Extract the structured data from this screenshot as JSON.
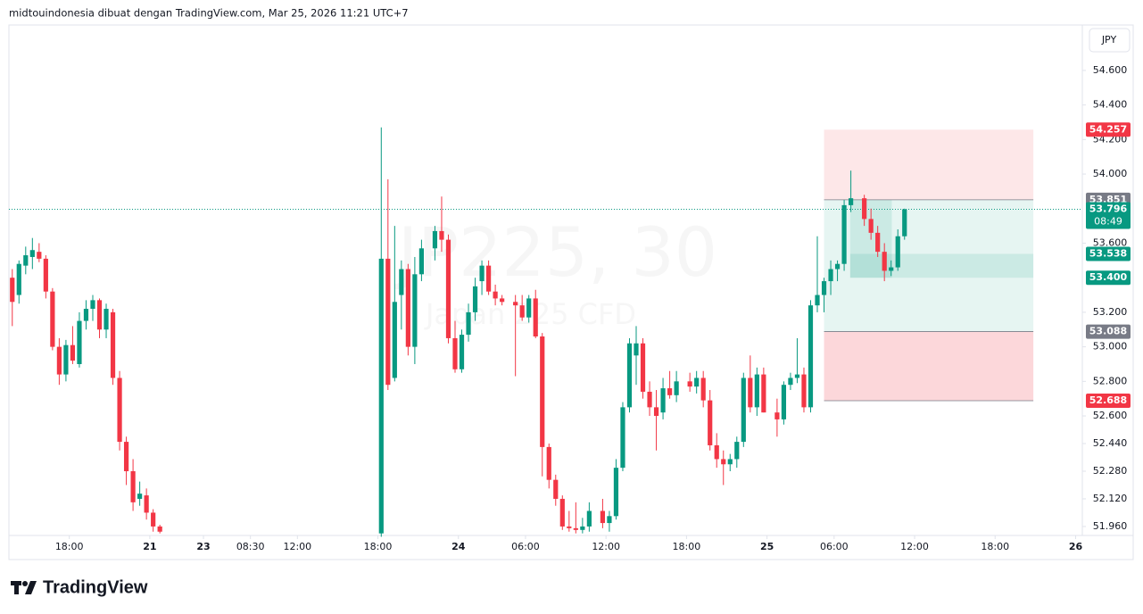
{
  "header": {
    "text": "midtouindonesia dibuat dengan TradingView.com, Mar 25, 2026 11:21 UTC+7",
    "currency": "JPY"
  },
  "watermark": {
    "symbol": "JP225, 30",
    "description": "Japan 225 CFD"
  },
  "logo": "TradingView",
  "chart_data": {
    "type": "candlestick",
    "up_color": "#089981",
    "down_color": "#f23645",
    "x": [
      0,
      1,
      2,
      3,
      4,
      5,
      6,
      7,
      8,
      9,
      10,
      11,
      12,
      13,
      14,
      15,
      16,
      17,
      18,
      19,
      20,
      21,
      22,
      55,
      56,
      57,
      58,
      59,
      60,
      61,
      63,
      64,
      65,
      66,
      67,
      68,
      69,
      70,
      71,
      72,
      73,
      75,
      76,
      77,
      78,
      79,
      80,
      81,
      82,
      83,
      84,
      85,
      86,
      88,
      89,
      90,
      91,
      92,
      93,
      94,
      95,
      96,
      97,
      98,
      99,
      101,
      102,
      103,
      104,
      105,
      106,
      107,
      108,
      109,
      110,
      111,
      112,
      114,
      115,
      116,
      117,
      118,
      119,
      120,
      121,
      122,
      123,
      124,
      125,
      127,
      128,
      129,
      130,
      131,
      132,
      133
    ],
    "open": [
      53.4,
      53.3,
      53.47,
      53.52,
      53.55,
      53.51,
      53.32,
      53.0,
      52.84,
      53.01,
      52.9,
      53.15,
      53.22,
      53.27,
      53.1,
      53.2,
      52.82,
      52.45,
      52.28,
      52.12,
      52.14,
      52.04,
      51.96,
      51.92,
      53.51,
      52.82,
      53.3,
      53.45,
      53.0,
      53.42,
      53.57,
      53.67,
      53.62,
      53.05,
      52.87,
      53.07,
      53.2,
      53.38,
      53.47,
      53.32,
      53.28,
      53.26,
      53.24,
      53.17,
      53.28,
      53.06,
      52.42,
      52.23,
      52.12,
      51.96,
      51.95,
      51.94,
      51.96,
      52.05,
      51.98,
      52.02,
      52.3,
      52.65,
      52.95,
      53.02,
      52.74,
      52.65,
      52.62,
      52.76,
      52.72,
      52.8,
      52.77,
      52.82,
      52.69,
      52.43,
      52.35,
      52.32,
      52.35,
      52.45,
      52.82,
      52.65,
      52.84,
      52.62,
      52.58,
      52.78,
      52.82,
      52.84,
      52.65,
      53.24,
      53.3,
      53.38,
      53.45,
      53.48,
      53.82,
      53.86,
      53.74,
      53.66,
      53.55,
      53.44,
      53.46,
      53.64
    ],
    "high": [
      53.45,
      53.5,
      53.58,
      53.63,
      53.6,
      53.53,
      53.34,
      53.05,
      53.04,
      53.12,
      53.2,
      53.27,
      53.3,
      53.28,
      53.25,
      53.22,
      52.86,
      52.48,
      52.35,
      52.22,
      52.18,
      52.06,
      51.97,
      54.27,
      53.97,
      53.7,
      53.5,
      53.48,
      53.52,
      53.62,
      53.7,
      53.87,
      53.65,
      53.15,
      53.1,
      53.25,
      53.4,
      53.5,
      53.5,
      53.36,
      53.3,
      53.3,
      53.3,
      53.3,
      53.33,
      53.08,
      52.44,
      52.26,
      52.14,
      52.05,
      52.1,
      52.01,
      52.1,
      52.12,
      52.05,
      52.35,
      52.68,
      53.05,
      53.12,
      53.05,
      52.8,
      52.75,
      52.82,
      52.86,
      52.86,
      52.85,
      52.86,
      52.86,
      52.75,
      52.5,
      52.4,
      52.38,
      52.48,
      52.85,
      52.95,
      52.88,
      52.88,
      52.7,
      52.8,
      52.85,
      53.05,
      52.88,
      53.27,
      53.64,
      53.4,
      53.5,
      53.5,
      53.85,
      54.02,
      53.88,
      53.8,
      53.7,
      53.6,
      53.5,
      53.68,
      53.8
    ],
    "low": [
      53.12,
      53.25,
      53.42,
      53.45,
      53.49,
      53.28,
      52.98,
      52.78,
      52.8,
      52.9,
      52.88,
      53.1,
      53.15,
      53.05,
      53.05,
      52.78,
      52.4,
      52.2,
      52.05,
      52.08,
      52.0,
      51.93,
      51.92,
      51.9,
      52.75,
      52.8,
      53.1,
      52.95,
      52.9,
      53.38,
      53.5,
      53.55,
      53.02,
      52.85,
      52.85,
      53.03,
      53.15,
      53.3,
      53.3,
      53.24,
      53.24,
      52.83,
      53.15,
      53.14,
      53.05,
      52.25,
      52.18,
      52.08,
      51.94,
      51.93,
      51.92,
      51.92,
      51.93,
      51.95,
      51.93,
      52.0,
      52.28,
      52.62,
      52.78,
      52.7,
      52.6,
      52.4,
      52.58,
      52.7,
      52.68,
      52.74,
      52.73,
      52.65,
      52.4,
      52.3,
      52.2,
      52.28,
      52.3,
      52.42,
      52.62,
      52.6,
      52.62,
      52.48,
      52.55,
      52.75,
      52.79,
      52.62,
      52.62,
      53.2,
      53.2,
      53.3,
      53.38,
      53.44,
      53.78,
      53.7,
      53.62,
      53.52,
      53.38,
      53.41,
      53.44,
      53.62
    ],
    "close": [
      53.26,
      53.48,
      53.53,
      53.56,
      53.51,
      53.32,
      53.0,
      52.84,
      53.01,
      52.92,
      53.15,
      53.22,
      53.27,
      53.1,
      53.22,
      52.82,
      52.45,
      52.28,
      52.1,
      52.15,
      52.04,
      51.96,
      51.93,
      53.51,
      52.78,
      53.26,
      53.45,
      53.0,
      53.42,
      53.57,
      53.67,
      53.62,
      53.05,
      52.87,
      53.07,
      53.2,
      53.35,
      53.47,
      53.32,
      53.28,
      53.26,
      53.24,
      53.17,
      53.28,
      53.06,
      52.42,
      52.23,
      52.12,
      51.96,
      51.95,
      51.94,
      51.96,
      52.05,
      51.98,
      52.02,
      52.3,
      52.65,
      53.02,
      53.02,
      52.74,
      52.65,
      52.6,
      52.76,
      52.72,
      52.8,
      52.77,
      52.82,
      52.69,
      52.43,
      52.35,
      52.32,
      52.35,
      52.45,
      52.82,
      52.65,
      52.84,
      52.62,
      52.58,
      52.78,
      52.82,
      52.84,
      52.65,
      53.24,
      53.3,
      53.38,
      53.45,
      53.48,
      53.82,
      53.86,
      53.74,
      53.66,
      53.55,
      53.44,
      53.46,
      53.64,
      53.796
    ],
    "xlim": [
      -0.5,
      159.5
    ],
    "ylim": [
      51.908,
      54.863
    ],
    "xticks": [
      {
        "value": 8.5,
        "label": "18:00"
      },
      {
        "value": 20.5,
        "label": "21"
      },
      {
        "value": 28.5,
        "label": "23"
      },
      {
        "value": 35.5,
        "label": "08:30"
      },
      {
        "value": 42.5,
        "label": "12:00"
      },
      {
        "value": 54.5,
        "label": "18:00"
      },
      {
        "value": 66.5,
        "label": "24"
      },
      {
        "value": 76.5,
        "label": "06:00"
      },
      {
        "value": 88.5,
        "label": "12:00"
      },
      {
        "value": 100.5,
        "label": "18:00"
      },
      {
        "value": 112.5,
        "label": "25"
      },
      {
        "value": 122.5,
        "label": "06:00"
      },
      {
        "value": 134.5,
        "label": "12:00"
      },
      {
        "value": 146.5,
        "label": "18:00"
      },
      {
        "value": 158.5,
        "label": "26"
      }
    ],
    "yticks": [
      {
        "value": 54.6,
        "label": "54.600"
      },
      {
        "value": 54.4,
        "label": "54.400"
      },
      {
        "value": 54.2,
        "label": "54.200"
      },
      {
        "value": 54,
        "label": "54.000"
      },
      {
        "value": 53.6,
        "label": "53.600"
      },
      {
        "value": 53.2,
        "label": "53.200"
      },
      {
        "value": 53,
        "label": "53.000"
      },
      {
        "value": 52.8,
        "label": "52.800"
      },
      {
        "value": 52.6,
        "label": "52.600"
      },
      {
        "value": 52.44,
        "label": "52.440"
      },
      {
        "value": 52.28,
        "label": "52.280"
      },
      {
        "value": 52.12,
        "label": "52.120"
      },
      {
        "value": 51.96,
        "label": "51.960"
      }
    ],
    "zones": [
      {
        "from": 54.257,
        "to": 53.851,
        "x": [
          121,
          152.2
        ],
        "color": "rgba(242,54,69,0.12)"
      },
      {
        "from": 53.851,
        "to": 53.088,
        "x": [
          121,
          152.2
        ],
        "color": "rgba(8,153,129,0.10)"
      },
      {
        "from": 53.088,
        "to": 52.688,
        "x": [
          121,
          152.2
        ],
        "color": "rgba(242,54,69,0.20)"
      },
      {
        "from": 53.538,
        "to": 53.4,
        "x": [
          124.9,
          152.2
        ],
        "color": "rgba(8,153,129,0.12)"
      },
      {
        "from": 53.851,
        "to": 53.4,
        "x": [
          124.9,
          131.1
        ],
        "color": "rgba(8,153,129,0.12)"
      }
    ],
    "last_price_line": {
      "value": 53.796,
      "color": "#089981"
    },
    "levels": [
      {
        "value": 54.257,
        "color": "#f23645"
      },
      {
        "value": 53.851,
        "color": "#787b86"
      },
      {
        "value": 53.796,
        "color": "#089981",
        "countdown": "08:49"
      },
      {
        "value": 53.538,
        "color": "#089981"
      },
      {
        "value": 53.4,
        "label": "53.400",
        "color": "#089981"
      },
      {
        "value": 53.088,
        "color": "#787b86"
      },
      {
        "value": 52.688,
        "color": "#f23645"
      }
    ]
  }
}
